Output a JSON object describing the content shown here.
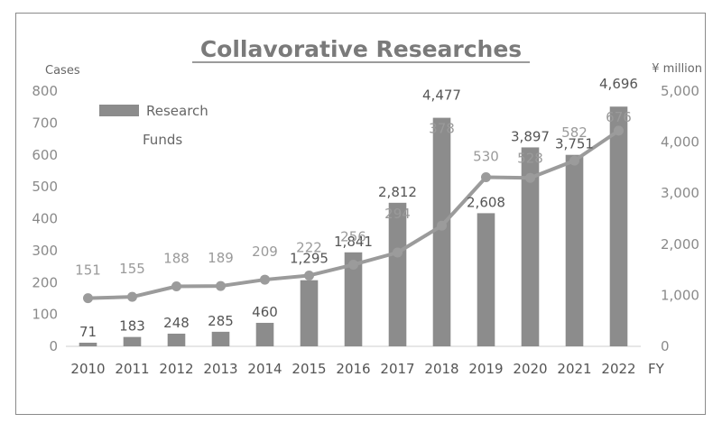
{
  "chart_data": {
    "type": "bar",
    "title": "Collavorative Researches",
    "categories": [
      "2010",
      "2011",
      "2012",
      "2013",
      "2014",
      "2015",
      "2016",
      "2017",
      "2018",
      "2019",
      "2020",
      "2021",
      "2022"
    ],
    "series": [
      {
        "name": "Research Funds",
        "type": "bar",
        "axis": "right",
        "values": [
          71,
          183,
          248,
          285,
          460,
          1295,
          1841,
          2812,
          4477,
          2608,
          3897,
          3751,
          4696
        ]
      },
      {
        "type": "line",
        "axis": "left",
        "values": [
          151,
          155,
          188,
          189,
          209,
          222,
          256,
          294,
          378,
          530,
          528,
          582,
          676
        ]
      }
    ],
    "left_axis": {
      "label": "Cases",
      "range": [
        0,
        800
      ],
      "ticks": [
        "0",
        "100",
        "200",
        "300",
        "400",
        "500",
        "600",
        "700",
        "800"
      ]
    },
    "right_axis": {
      "label": "¥ million",
      "range": [
        0,
        5000
      ],
      "ticks": [
        "0",
        "1,000",
        "2,000",
        "3,000",
        "4,000",
        "5,000"
      ]
    },
    "x_axis_label": "FY",
    "legend": {
      "position": "top-left",
      "entries": [
        "Research",
        "Funds"
      ]
    },
    "grid": false,
    "colors": {
      "bar": "#8c8c8c",
      "line": "#9b9b9b",
      "funds_label": "#555555",
      "cases_label": "#9a9a9a"
    }
  }
}
